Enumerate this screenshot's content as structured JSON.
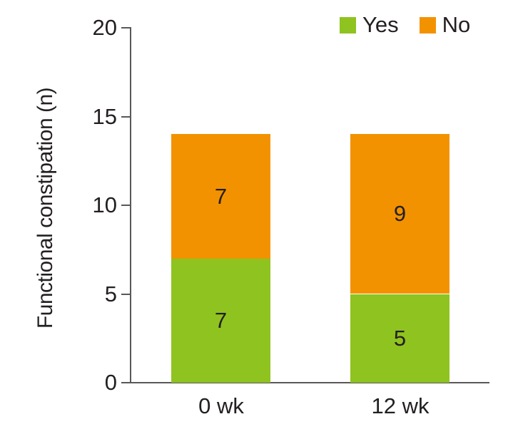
{
  "chart_data": {
    "type": "bar",
    "stacked": true,
    "categories": [
      "0 wk",
      "12 wk"
    ],
    "series": [
      {
        "name": "Yes",
        "color": "#8FC31F",
        "values": [
          7,
          5
        ]
      },
      {
        "name": "No",
        "color": "#F39200",
        "values": [
          7,
          9
        ]
      }
    ],
    "ylabel": "Functional constipation (n)",
    "ylim": [
      0,
      20
    ],
    "yticks": [
      0,
      5,
      10,
      15,
      20
    ],
    "legend_position": "top-right",
    "grid": false
  },
  "colors": {
    "axis": "#595757",
    "text": "#231F20"
  }
}
